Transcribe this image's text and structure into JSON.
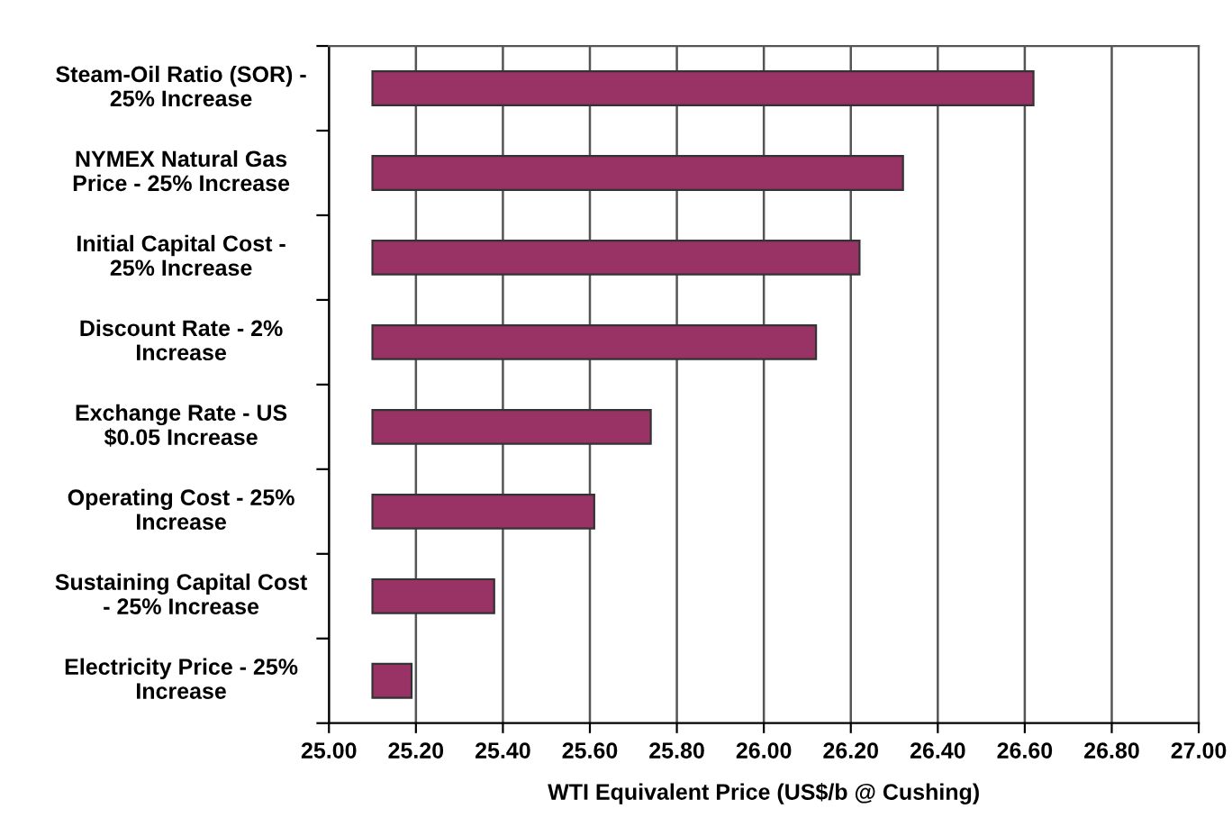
{
  "chart_data": {
    "type": "bar",
    "orientation": "horizontal",
    "categories": [
      "Steam-Oil Ratio (SOR) -\n25% Increase",
      "NYMEX Natural Gas\nPrice - 25% Increase",
      "Initial Capital Cost -\n25% Increase",
      "Discount Rate - 2%\nIncrease",
      "Exchange Rate - US\n$0.05 Increase",
      "Operating Cost - 25%\nIncrease",
      "Sustaining Capital Cost\n- 25% Increase",
      "Electricity Price - 25%\nIncrease"
    ],
    "base": [
      25.1,
      25.1,
      25.1,
      25.1,
      25.1,
      25.1,
      25.1,
      25.1
    ],
    "values": [
      1.52,
      1.22,
      1.12,
      1.02,
      0.64,
      0.51,
      0.28,
      0.09
    ],
    "color": "#993366",
    "xlabel": "WTI Equivalent Price (US$/b @ Cushing)",
    "xlim": [
      25.0,
      27.0
    ],
    "xticks": [
      {
        "value": 25.0,
        "label": "25.00"
      },
      {
        "value": 25.2,
        "label": "25.20"
      },
      {
        "value": 25.4,
        "label": "25.40"
      },
      {
        "value": 25.6,
        "label": "25.60"
      },
      {
        "value": 25.8,
        "label": "25.80"
      },
      {
        "value": 26.0,
        "label": "26.00"
      },
      {
        "value": 26.2,
        "label": "26.20"
      },
      {
        "value": 26.4,
        "label": "26.40"
      },
      {
        "value": 26.6,
        "label": "26.60"
      },
      {
        "value": 26.8,
        "label": "26.80"
      },
      {
        "value": 27.0,
        "label": "27.00"
      }
    ],
    "grid": "x",
    "legend": false
  }
}
